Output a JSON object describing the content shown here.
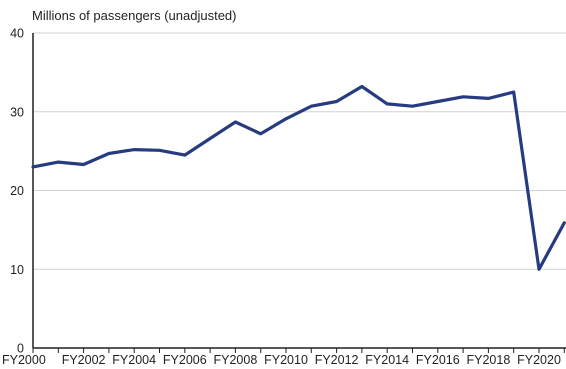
{
  "chart_data": {
    "type": "line",
    "title": "",
    "ylabel": "Millions of passengers (unadjusted)",
    "xlabel": "",
    "x": [
      "FY2000",
      "FY2001",
      "FY2002",
      "FY2003",
      "FY2004",
      "FY2005",
      "FY2006",
      "FY2007",
      "FY2008",
      "FY2009",
      "FY2010",
      "FY2011",
      "FY2012",
      "FY2013",
      "FY2014",
      "FY2015",
      "FY2016",
      "FY2017",
      "FY2018",
      "FY2019",
      "FY2020",
      "FY2021"
    ],
    "x_tick_labels": [
      "FY2000",
      "FY2002",
      "FY2004",
      "FY2006",
      "FY2008",
      "FY2010",
      "FY2012",
      "FY2014",
      "FY2016",
      "FY2018",
      "FY2020"
    ],
    "series": [
      {
        "values": [
          23.0,
          23.6,
          23.3,
          24.7,
          25.2,
          25.1,
          24.5,
          26.6,
          28.7,
          27.2,
          29.1,
          30.7,
          31.3,
          33.2,
          31.0,
          30.7,
          31.3,
          31.9,
          31.7,
          32.5,
          10.0,
          15.9
        ],
        "color": "#263b80"
      }
    ],
    "ylim": [
      0,
      40
    ],
    "y_ticks": [
      0,
      10,
      20,
      30,
      40
    ],
    "grid": "horizontal",
    "legend": "none"
  }
}
